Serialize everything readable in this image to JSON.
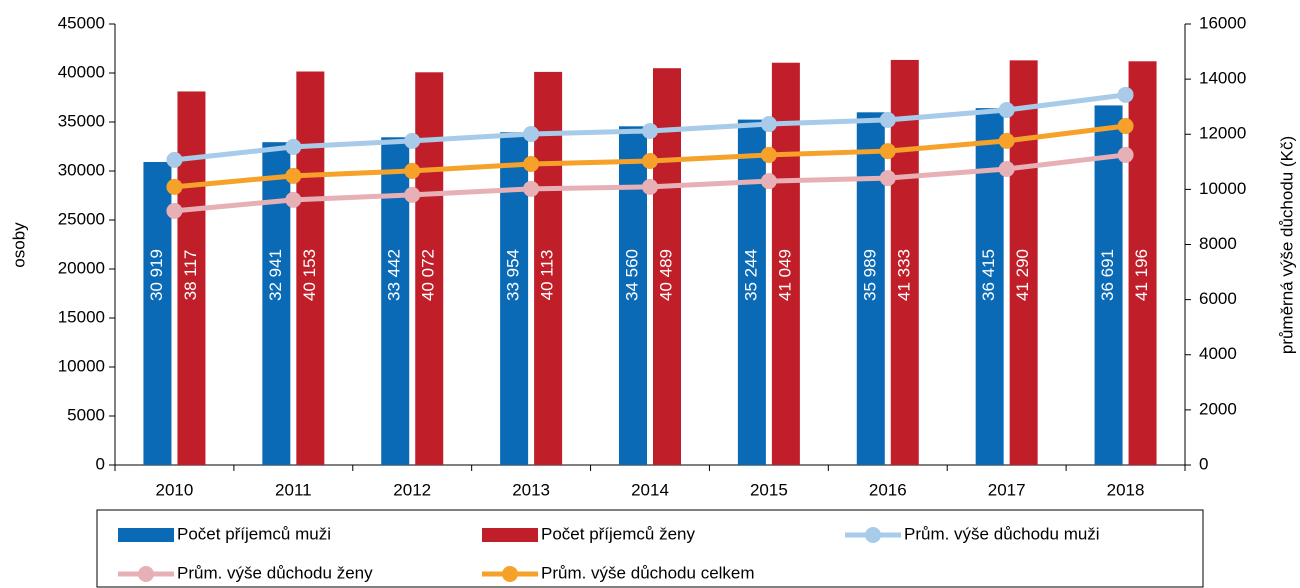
{
  "chart_data": {
    "type": "bar",
    "categories": [
      "2010",
      "2011",
      "2012",
      "2013",
      "2014",
      "2015",
      "2016",
      "2017",
      "2018"
    ],
    "ylabel": "osoby",
    "y2label": "průměrná výše důchodu (Kč)",
    "ylim": [
      0,
      45000
    ],
    "yticks": [
      0,
      5000,
      10000,
      15000,
      20000,
      25000,
      30000,
      35000,
      40000,
      45000
    ],
    "y2lim": [
      0,
      16000
    ],
    "y2ticks": [
      0,
      2000,
      4000,
      6000,
      8000,
      10000,
      12000,
      14000,
      16000
    ],
    "legend": "bottom",
    "series": [
      {
        "name": "Počet příjemců muži",
        "type": "bar",
        "color": "#0a6ab6",
        "values": [
          30919,
          32941,
          33442,
          33954,
          34560,
          35244,
          35989,
          36415,
          36691
        ],
        "value_labels": [
          "30 919",
          "32 941",
          "33 442",
          "33 954",
          "34 560",
          "35 244",
          "35 989",
          "36 415",
          "36 691"
        ]
      },
      {
        "name": "Počet příjemců ženy",
        "type": "bar",
        "color": "#c01f2a",
        "values": [
          38117,
          40153,
          40072,
          40113,
          40489,
          41049,
          41333,
          41290,
          41196
        ],
        "value_labels": [
          "38 117",
          "40 153",
          "40 072",
          "40 113",
          "40 489",
          "41 049",
          "41 333",
          "41 290",
          "41 196"
        ]
      },
      {
        "name": "Prům. výše důchodu muži",
        "type": "line",
        "axis": "y2",
        "color": "#a7cbe8",
        "values": [
          11070,
          11540,
          11760,
          12010,
          12120,
          12370,
          12520,
          12880,
          13430
        ]
      },
      {
        "name": "Prům. výše důchodu ženy",
        "type": "line",
        "axis": "y2",
        "color": "#e6b0b6",
        "values": [
          9220,
          9620,
          9800,
          10020,
          10090,
          10300,
          10410,
          10740,
          11250
        ]
      },
      {
        "name": "Prům. výše důchodu celkem",
        "type": "line",
        "axis": "y2",
        "color": "#f5a12a",
        "values": [
          10090,
          10490,
          10670,
          10920,
          11030,
          11250,
          11390,
          11760,
          12300
        ]
      }
    ]
  }
}
